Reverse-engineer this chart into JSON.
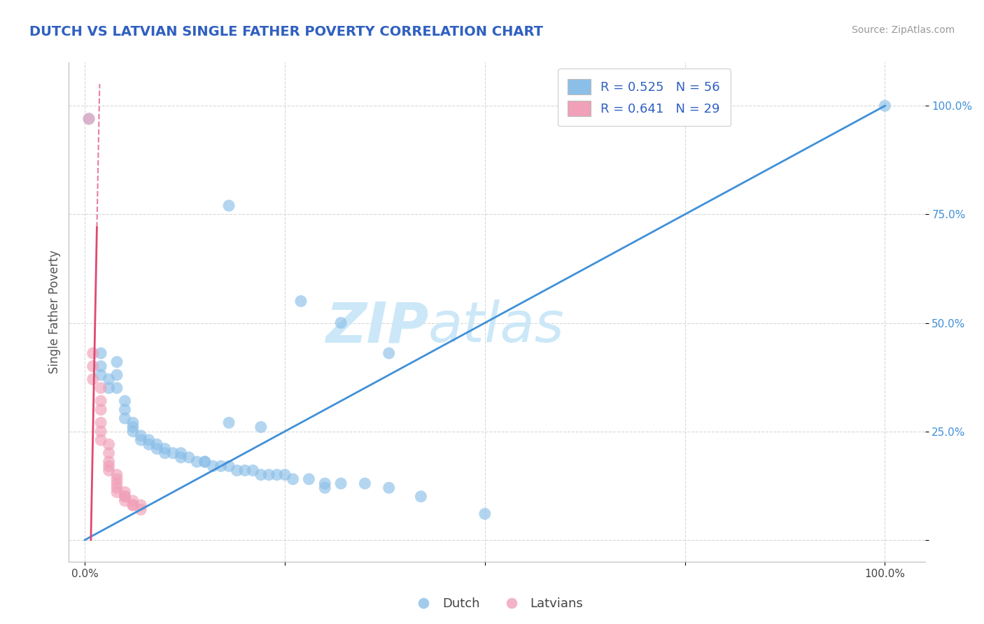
{
  "title": "DUTCH VS LATVIAN SINGLE FATHER POVERTY CORRELATION CHART",
  "source": "Source: ZipAtlas.com",
  "ylabel": "Single Father Poverty",
  "xlim": [
    -0.02,
    1.05
  ],
  "ylim": [
    -0.05,
    1.1
  ],
  "dutch_R": 0.525,
  "dutch_N": 56,
  "latvian_R": 0.641,
  "latvian_N": 29,
  "dutch_color": "#8bbfe8",
  "latvian_color": "#f0a0b8",
  "trend_blue": "#4090d8",
  "trend_pink": "#e04870",
  "watermark_zip": "ZIP",
  "watermark_atlas": "atlas",
  "watermark_color": "#cce8f8",
  "background_color": "#ffffff",
  "grid_color": "#d8d8d8",
  "title_color": "#3060c0",
  "axis_label_color": "#555555",
  "legend_color": "#3060c0",
  "ytick_color": "#4090d8",
  "xtick_color": "#444444",
  "dutch_points": [
    [
      0.005,
      0.97
    ],
    [
      0.18,
      0.77
    ],
    [
      0.27,
      0.55
    ],
    [
      0.32,
      0.5
    ],
    [
      0.38,
      0.43
    ],
    [
      0.02,
      0.43
    ],
    [
      0.02,
      0.4
    ],
    [
      0.02,
      0.38
    ],
    [
      0.03,
      0.37
    ],
    [
      0.03,
      0.35
    ],
    [
      0.04,
      0.41
    ],
    [
      0.04,
      0.38
    ],
    [
      0.04,
      0.35
    ],
    [
      0.05,
      0.32
    ],
    [
      0.05,
      0.3
    ],
    [
      0.05,
      0.28
    ],
    [
      0.06,
      0.27
    ],
    [
      0.06,
      0.26
    ],
    [
      0.06,
      0.25
    ],
    [
      0.07,
      0.24
    ],
    [
      0.07,
      0.23
    ],
    [
      0.08,
      0.23
    ],
    [
      0.08,
      0.22
    ],
    [
      0.09,
      0.22
    ],
    [
      0.09,
      0.21
    ],
    [
      0.1,
      0.21
    ],
    [
      0.1,
      0.2
    ],
    [
      0.11,
      0.2
    ],
    [
      0.12,
      0.2
    ],
    [
      0.12,
      0.19
    ],
    [
      0.13,
      0.19
    ],
    [
      0.14,
      0.18
    ],
    [
      0.15,
      0.18
    ],
    [
      0.15,
      0.18
    ],
    [
      0.16,
      0.17
    ],
    [
      0.17,
      0.17
    ],
    [
      0.18,
      0.17
    ],
    [
      0.19,
      0.16
    ],
    [
      0.2,
      0.16
    ],
    [
      0.21,
      0.16
    ],
    [
      0.22,
      0.15
    ],
    [
      0.23,
      0.15
    ],
    [
      0.24,
      0.15
    ],
    [
      0.25,
      0.15
    ],
    [
      0.26,
      0.14
    ],
    [
      0.28,
      0.14
    ],
    [
      0.3,
      0.13
    ],
    [
      0.32,
      0.13
    ],
    [
      0.35,
      0.13
    ],
    [
      0.18,
      0.27
    ],
    [
      0.22,
      0.26
    ],
    [
      0.3,
      0.12
    ],
    [
      0.38,
      0.12
    ],
    [
      0.42,
      0.1
    ],
    [
      0.5,
      0.06
    ],
    [
      1.0,
      1.0
    ]
  ],
  "latvian_points": [
    [
      0.005,
      0.97
    ],
    [
      0.01,
      0.43
    ],
    [
      0.01,
      0.4
    ],
    [
      0.01,
      0.37
    ],
    [
      0.02,
      0.35
    ],
    [
      0.02,
      0.32
    ],
    [
      0.02,
      0.3
    ],
    [
      0.02,
      0.27
    ],
    [
      0.02,
      0.25
    ],
    [
      0.02,
      0.23
    ],
    [
      0.03,
      0.22
    ],
    [
      0.03,
      0.2
    ],
    [
      0.03,
      0.18
    ],
    [
      0.03,
      0.17
    ],
    [
      0.03,
      0.16
    ],
    [
      0.04,
      0.15
    ],
    [
      0.04,
      0.14
    ],
    [
      0.04,
      0.13
    ],
    [
      0.04,
      0.12
    ],
    [
      0.04,
      0.11
    ],
    [
      0.05,
      0.11
    ],
    [
      0.05,
      0.1
    ],
    [
      0.05,
      0.1
    ],
    [
      0.05,
      0.09
    ],
    [
      0.06,
      0.09
    ],
    [
      0.06,
      0.08
    ],
    [
      0.06,
      0.08
    ],
    [
      0.07,
      0.08
    ],
    [
      0.07,
      0.07
    ]
  ],
  "blue_line_x0": 0.0,
  "blue_line_y0": 0.0,
  "blue_line_x1": 1.0,
  "blue_line_y1": 1.0,
  "pink_line_solid_x0": 0.01,
  "pink_line_solid_y0": 0.24,
  "pink_line_solid_x1": 0.015,
  "pink_line_solid_y1": 0.72,
  "pink_line_dash_x0": 0.015,
  "pink_line_dash_y0": 0.72,
  "pink_line_dash_x1": 0.012,
  "pink_line_dash_y1": 1.05
}
